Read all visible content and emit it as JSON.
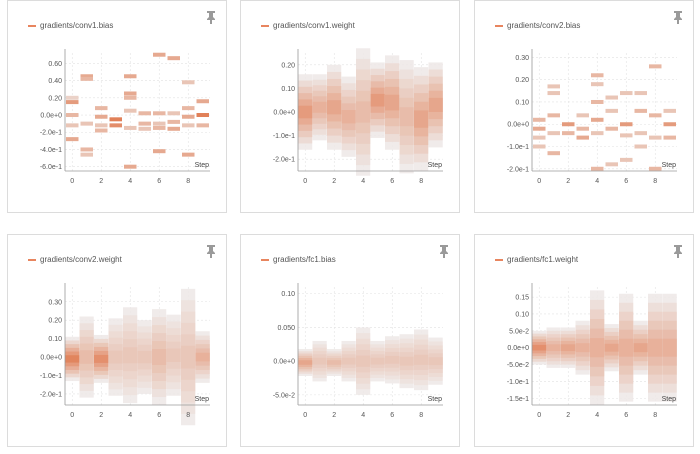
{
  "chart_data": [
    {
      "type": "heatmap",
      "legend": "gradients/conv1.bias",
      "x_ticks": [
        "0",
        "2",
        "4",
        "6",
        "8"
      ],
      "xlim": [
        -0.5,
        9.5
      ],
      "y_ticks": [
        "0.60",
        "0.40",
        "0.20",
        "0.0e+0",
        "-2.0e-1",
        "-4.0e-1",
        "-6.0e-1"
      ],
      "y_values": [
        0.6,
        0.4,
        0.2,
        0.0,
        -0.2,
        -0.4,
        -0.6
      ],
      "ylim": [
        -0.65,
        0.72
      ],
      "x_label": "Step",
      "bands": [
        {
          "x": 0,
          "y": 0.15,
          "i": 0.6
        },
        {
          "x": 0,
          "y": 0.0,
          "i": 0.4
        },
        {
          "x": 0,
          "y": -0.12,
          "i": 0.3
        },
        {
          "x": 0,
          "y": -0.28,
          "i": 0.5
        },
        {
          "x": 0,
          "y": 0.2,
          "i": 0.2
        },
        {
          "x": 1,
          "y": 0.45,
          "i": 0.5
        },
        {
          "x": 1,
          "y": 0.42,
          "i": 0.4
        },
        {
          "x": 1,
          "y": -0.1,
          "i": 0.3
        },
        {
          "x": 1,
          "y": -0.4,
          "i": 0.4
        },
        {
          "x": 1,
          "y": -0.46,
          "i": 0.3
        },
        {
          "x": 2,
          "y": 0.08,
          "i": 0.4
        },
        {
          "x": 2,
          "y": -0.02,
          "i": 0.5
        },
        {
          "x": 2,
          "y": -0.12,
          "i": 0.3
        },
        {
          "x": 2,
          "y": -0.18,
          "i": 0.4
        },
        {
          "x": 3,
          "y": -0.05,
          "i": 0.8
        },
        {
          "x": 3,
          "y": -0.12,
          "i": 0.7
        },
        {
          "x": 4,
          "y": 0.45,
          "i": 0.5
        },
        {
          "x": 4,
          "y": 0.25,
          "i": 0.5
        },
        {
          "x": 4,
          "y": 0.2,
          "i": 0.4
        },
        {
          "x": 4,
          "y": 0.05,
          "i": 0.3
        },
        {
          "x": 4,
          "y": -0.15,
          "i": 0.3
        },
        {
          "x": 4,
          "y": -0.6,
          "i": 0.5
        },
        {
          "x": 5,
          "y": 0.02,
          "i": 0.4
        },
        {
          "x": 5,
          "y": -0.1,
          "i": 0.4
        },
        {
          "x": 5,
          "y": -0.16,
          "i": 0.3
        },
        {
          "x": 6,
          "y": 0.7,
          "i": 0.5
        },
        {
          "x": 6,
          "y": 0.02,
          "i": 0.4
        },
        {
          "x": 6,
          "y": -0.15,
          "i": 0.4
        },
        {
          "x": 6,
          "y": -0.42,
          "i": 0.5
        },
        {
          "x": 6,
          "y": -0.1,
          "i": 0.3
        },
        {
          "x": 7,
          "y": 0.66,
          "i": 0.5
        },
        {
          "x": 7,
          "y": 0.02,
          "i": 0.3
        },
        {
          "x": 7,
          "y": -0.08,
          "i": 0.4
        },
        {
          "x": 7,
          "y": -0.16,
          "i": 0.5
        },
        {
          "x": 8,
          "y": 0.38,
          "i": 0.3
        },
        {
          "x": 8,
          "y": 0.08,
          "i": 0.4
        },
        {
          "x": 8,
          "y": -0.02,
          "i": 0.5
        },
        {
          "x": 8,
          "y": -0.12,
          "i": 0.3
        },
        {
          "x": 8,
          "y": -0.46,
          "i": 0.5
        },
        {
          "x": 9,
          "y": 0.16,
          "i": 0.5
        },
        {
          "x": 9,
          "y": 0.0,
          "i": 0.8
        },
        {
          "x": 9,
          "y": -0.12,
          "i": 0.4
        }
      ]
    },
    {
      "type": "heatmap",
      "legend": "gradients/conv1.weight",
      "x_ticks": [
        "0",
        "2",
        "4",
        "6",
        "8"
      ],
      "xlim": [
        -0.5,
        9.5
      ],
      "y_ticks": [
        "0.20",
        "0.10",
        "0.0e+0",
        "-1.0e-1",
        "-2.0e-1"
      ],
      "y_values": [
        0.2,
        0.1,
        0.0,
        -0.1,
        -0.2
      ],
      "ylim": [
        -0.25,
        0.25
      ],
      "x_label": "Step",
      "columns": [
        {
          "x": 0,
          "center": 0.0,
          "spread": 0.16,
          "peak": 0.7
        },
        {
          "x": 1,
          "center": 0.02,
          "spread": 0.14,
          "peak": 0.5
        },
        {
          "x": 2,
          "center": 0.02,
          "spread": 0.18,
          "peak": 0.6
        },
        {
          "x": 3,
          "center": -0.02,
          "spread": 0.17,
          "peak": 0.5
        },
        {
          "x": 4,
          "center": 0.0,
          "spread": 0.27,
          "peak": 0.4
        },
        {
          "x": 5,
          "center": 0.05,
          "spread": 0.16,
          "peak": 0.7
        },
        {
          "x": 6,
          "center": 0.04,
          "spread": 0.2,
          "peak": 0.6
        },
        {
          "x": 7,
          "center": -0.02,
          "spread": 0.24,
          "peak": 0.4
        },
        {
          "x": 8,
          "center": -0.03,
          "spread": 0.22,
          "peak": 0.6
        },
        {
          "x": 9,
          "center": 0.03,
          "spread": 0.18,
          "peak": 0.6
        }
      ]
    },
    {
      "type": "heatmap",
      "legend": "gradients/conv2.bias",
      "x_ticks": [
        "0",
        "2",
        "4",
        "6",
        "8"
      ],
      "xlim": [
        -0.5,
        9.5
      ],
      "y_ticks": [
        "0.30",
        "0.20",
        "0.10",
        "0.0e+0",
        "-1.0e-1",
        "-2.0e-1"
      ],
      "y_values": [
        0.3,
        0.2,
        0.1,
        0.0,
        -0.1,
        -0.2
      ],
      "ylim": [
        -0.21,
        0.32
      ],
      "x_label": "Step",
      "bands": [
        {
          "x": 0,
          "y": 0.02,
          "i": 0.4
        },
        {
          "x": 0,
          "y": -0.02,
          "i": 0.5
        },
        {
          "x": 0,
          "y": -0.06,
          "i": 0.3
        },
        {
          "x": 0,
          "y": -0.1,
          "i": 0.3
        },
        {
          "x": 1,
          "y": 0.17,
          "i": 0.3
        },
        {
          "x": 1,
          "y": 0.14,
          "i": 0.3
        },
        {
          "x": 1,
          "y": 0.04,
          "i": 0.4
        },
        {
          "x": 1,
          "y": -0.04,
          "i": 0.3
        },
        {
          "x": 1,
          "y": -0.13,
          "i": 0.4
        },
        {
          "x": 2,
          "y": 0.0,
          "i": 0.6
        },
        {
          "x": 2,
          "y": -0.04,
          "i": 0.4
        },
        {
          "x": 3,
          "y": 0.04,
          "i": 0.3
        },
        {
          "x": 3,
          "y": -0.02,
          "i": 0.4
        },
        {
          "x": 3,
          "y": -0.06,
          "i": 0.5
        },
        {
          "x": 4,
          "y": 0.22,
          "i": 0.4
        },
        {
          "x": 4,
          "y": 0.18,
          "i": 0.3
        },
        {
          "x": 4,
          "y": 0.1,
          "i": 0.4
        },
        {
          "x": 4,
          "y": 0.02,
          "i": 0.5
        },
        {
          "x": 4,
          "y": -0.04,
          "i": 0.3
        },
        {
          "x": 4,
          "y": -0.2,
          "i": 0.4
        },
        {
          "x": 5,
          "y": 0.12,
          "i": 0.3
        },
        {
          "x": 5,
          "y": 0.06,
          "i": 0.3
        },
        {
          "x": 5,
          "y": -0.02,
          "i": 0.4
        },
        {
          "x": 5,
          "y": -0.18,
          "i": 0.3
        },
        {
          "x": 6,
          "y": 0.14,
          "i": 0.3
        },
        {
          "x": 6,
          "y": 0.0,
          "i": 0.6
        },
        {
          "x": 6,
          "y": -0.05,
          "i": 0.3
        },
        {
          "x": 6,
          "y": -0.16,
          "i": 0.3
        },
        {
          "x": 7,
          "y": 0.14,
          "i": 0.3
        },
        {
          "x": 7,
          "y": 0.06,
          "i": 0.4
        },
        {
          "x": 7,
          "y": -0.04,
          "i": 0.3
        },
        {
          "x": 7,
          "y": -0.1,
          "i": 0.3
        },
        {
          "x": 8,
          "y": 0.26,
          "i": 0.4
        },
        {
          "x": 8,
          "y": 0.04,
          "i": 0.4
        },
        {
          "x": 8,
          "y": -0.06,
          "i": 0.3
        },
        {
          "x": 8,
          "y": -0.2,
          "i": 0.4
        },
        {
          "x": 9,
          "y": 0.06,
          "i": 0.3
        },
        {
          "x": 9,
          "y": 0.0,
          "i": 0.6
        },
        {
          "x": 9,
          "y": -0.06,
          "i": 0.4
        }
      ]
    },
    {
      "type": "heatmap",
      "legend": "gradients/conv2.weight",
      "x_ticks": [
        "0",
        "2",
        "4",
        "6",
        "8"
      ],
      "xlim": [
        -0.5,
        9.5
      ],
      "y_ticks": [
        "0.30",
        "0.20",
        "0.10",
        "0.0e+0",
        "-1.0e-1",
        "-2.0e-1"
      ],
      "y_values": [
        0.3,
        0.2,
        0.1,
        0.0,
        -0.1,
        -0.2
      ],
      "ylim": [
        -0.26,
        0.38
      ],
      "x_label": "Step",
      "columns": [
        {
          "x": 0,
          "center": -0.01,
          "spread": 0.12,
          "peak": 0.9
        },
        {
          "x": 1,
          "center": 0.0,
          "spread": 0.22,
          "peak": 0.4
        },
        {
          "x": 2,
          "center": -0.01,
          "spread": 0.13,
          "peak": 0.8
        },
        {
          "x": 3,
          "center": 0.0,
          "spread": 0.21,
          "peak": 0.3
        },
        {
          "x": 4,
          "center": 0.01,
          "spread": 0.26,
          "peak": 0.3
        },
        {
          "x": 5,
          "center": 0.0,
          "spread": 0.2,
          "peak": 0.3
        },
        {
          "x": 6,
          "center": 0.0,
          "spread": 0.26,
          "peak": 0.4
        },
        {
          "x": 7,
          "center": 0.01,
          "spread": 0.22,
          "peak": 0.3
        },
        {
          "x": 8,
          "center": 0.0,
          "spread": 0.37,
          "peak": 0.3
        },
        {
          "x": 9,
          "center": 0.0,
          "spread": 0.14,
          "peak": 0.5
        }
      ]
    },
    {
      "type": "heatmap",
      "legend": "gradients/fc1.bias",
      "x_ticks": [
        "0",
        "2",
        "4",
        "6",
        "8"
      ],
      "xlim": [
        -0.5,
        9.5
      ],
      "y_ticks": [
        "0.10",
        "0.050",
        "0.0e+0",
        "-5.0e-2"
      ],
      "y_values": [
        0.1,
        0.05,
        0.0,
        -0.05
      ],
      "ylim": [
        -0.065,
        0.11
      ],
      "x_label": "Step",
      "columns": [
        {
          "x": 0,
          "center": -0.002,
          "spread": 0.02,
          "peak": 0.6
        },
        {
          "x": 1,
          "center": 0.0,
          "spread": 0.03,
          "peak": 0.3
        },
        {
          "x": 2,
          "center": -0.002,
          "spread": 0.02,
          "peak": 0.4
        },
        {
          "x": 3,
          "center": 0.0,
          "spread": 0.03,
          "peak": 0.3
        },
        {
          "x": 4,
          "center": 0.0,
          "spread": 0.05,
          "peak": 0.3
        },
        {
          "x": 5,
          "center": 0.0,
          "spread": 0.03,
          "peak": 0.3
        },
        {
          "x": 6,
          "center": 0.002,
          "spread": 0.035,
          "peak": 0.3
        },
        {
          "x": 7,
          "center": 0.0,
          "spread": 0.04,
          "peak": 0.3
        },
        {
          "x": 8,
          "center": 0.002,
          "spread": 0.045,
          "peak": 0.3
        },
        {
          "x": 9,
          "center": 0.0,
          "spread": 0.035,
          "peak": 0.3
        }
      ]
    },
    {
      "type": "heatmap",
      "legend": "gradients/fc1.weight",
      "x_ticks": [
        "0",
        "2",
        "4",
        "6",
        "8"
      ],
      "xlim": [
        -0.5,
        9.5
      ],
      "y_ticks": [
        "0.15",
        "0.10",
        "5.0e-2",
        "0.0e+0",
        "-5.0e-2",
        "-1.0e-1",
        "-1.5e-1"
      ],
      "y_values": [
        0.15,
        0.1,
        0.05,
        0.0,
        -0.05,
        -0.1,
        -0.15
      ],
      "ylim": [
        -0.17,
        0.18
      ],
      "x_label": "Step",
      "columns": [
        {
          "x": 0,
          "center": 0.0,
          "spread": 0.05,
          "peak": 0.8
        },
        {
          "x": 1,
          "center": 0.0,
          "spread": 0.06,
          "peak": 0.5
        },
        {
          "x": 2,
          "center": 0.0,
          "spread": 0.06,
          "peak": 0.6
        },
        {
          "x": 3,
          "center": 0.0,
          "spread": 0.08,
          "peak": 0.5
        },
        {
          "x": 4,
          "center": 0.0,
          "spread": 0.17,
          "peak": 0.5
        },
        {
          "x": 5,
          "center": 0.0,
          "spread": 0.07,
          "peak": 0.6
        },
        {
          "x": 6,
          "center": 0.0,
          "spread": 0.16,
          "peak": 0.5
        },
        {
          "x": 7,
          "center": 0.0,
          "spread": 0.08,
          "peak": 0.6
        },
        {
          "x": 8,
          "center": 0.0,
          "spread": 0.16,
          "peak": 0.5
        },
        {
          "x": 9,
          "center": 0.0,
          "spread": 0.16,
          "peak": 0.5
        }
      ]
    }
  ],
  "colors": {
    "accent": "#e8855f",
    "card_border": "#dcdcdc",
    "pin": "#9a9a9a"
  },
  "icons": {
    "pin": "pin-icon"
  }
}
